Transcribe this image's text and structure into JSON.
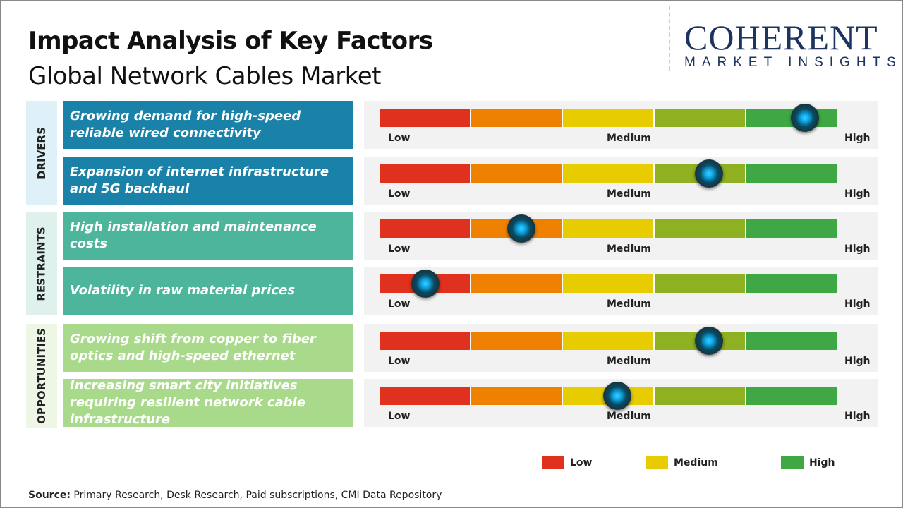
{
  "title": "Impact Analysis of Key Factors",
  "subtitle": "Global Network Cables Market",
  "logo": {
    "main": "COHERENT",
    "sub": "MARKET INSIGHTS"
  },
  "colors": {
    "low": "#e0301e",
    "low_medium": "#ee8200",
    "medium": "#e6cc00",
    "medium_high": "#8fb021",
    "high": "#3fa844",
    "drivers": "#1a82a8",
    "restraints": "#4db59b",
    "opportunities": "#a9d98b"
  },
  "scale_labels": {
    "low": "Low",
    "medium": "Medium",
    "high": "High"
  },
  "chart_data": {
    "type": "gauge",
    "scale": [
      "Low",
      "Medium",
      "High"
    ],
    "categories": [
      {
        "name": "DRIVERS",
        "factors": [
          {
            "label": "Growing demand for high-speed reliable wired connectivity",
            "impact": 0.93
          },
          {
            "label": "Expansion of internet infrastructure and 5G backhaul",
            "impact": 0.72
          }
        ]
      },
      {
        "name": "RESTRAINTS",
        "factors": [
          {
            "label": "High installation and maintenance costs",
            "impact": 0.31
          },
          {
            "label": "Volatility in raw material prices",
            "impact": 0.1
          }
        ]
      },
      {
        "name": "OPPORTUNITIES",
        "factors": [
          {
            "label": "Growing shift from copper to fiber optics and high-speed ethernet",
            "impact": 0.72
          },
          {
            "label": "Increasing smart city initiatives requiring resilient network cable infrastructure",
            "impact": 0.52
          }
        ]
      }
    ]
  },
  "legend": [
    {
      "label": "Low",
      "color": "#e0301e"
    },
    {
      "label": "Medium",
      "color": "#e6cc00"
    },
    {
      "label": "High",
      "color": "#3fa844"
    }
  ],
  "source": {
    "label": "Source:",
    "text": " Primary Research, Desk Research, Paid subscriptions, CMI Data Repository"
  }
}
